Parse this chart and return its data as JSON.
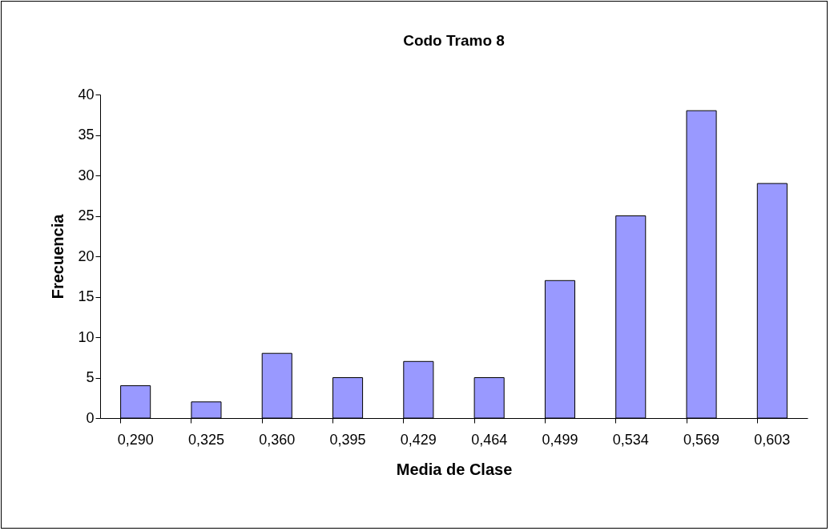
{
  "chart_data": {
    "type": "bar",
    "title": "Codo Tramo 8",
    "xlabel": "Media de Clase",
    "ylabel": "Frecuencia",
    "categories": [
      "0,290",
      "0,325",
      "0,360",
      "0,395",
      "0,429",
      "0,464",
      "0,499",
      "0,534",
      "0,569",
      "0,603"
    ],
    "values": [
      4,
      2,
      8,
      5,
      7,
      5,
      17,
      25,
      38,
      29
    ],
    "color": "#9999ff",
    "ylim": [
      0,
      40
    ],
    "yticks": [
      0,
      5,
      10,
      15,
      20,
      25,
      30,
      35,
      40
    ]
  }
}
